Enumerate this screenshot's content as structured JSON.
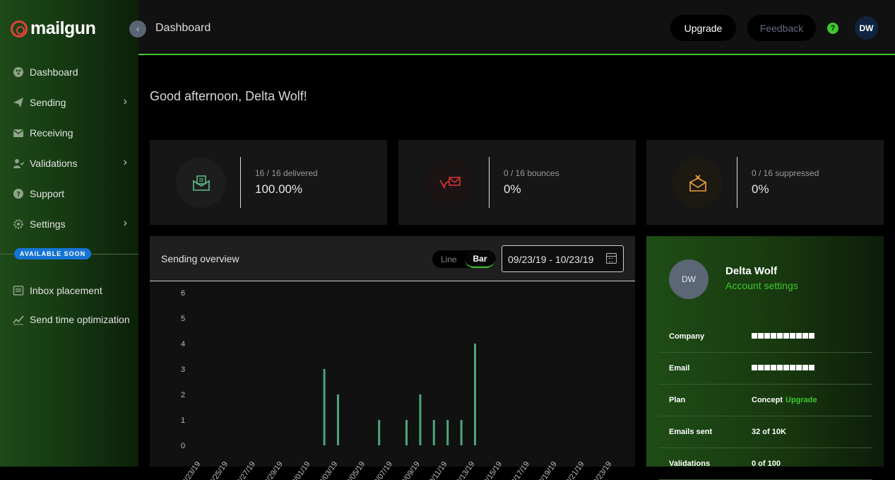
{
  "brand": {
    "name": "mailgun"
  },
  "sidebar": {
    "items": [
      {
        "label": "Dashboard",
        "icon": "dashboard-icon",
        "has_chevron": false
      },
      {
        "label": "Sending",
        "icon": "paper-plane-icon",
        "has_chevron": true
      },
      {
        "label": "Receiving",
        "icon": "inbox-icon",
        "has_chevron": false
      },
      {
        "label": "Validations",
        "icon": "user-check-icon",
        "has_chevron": true
      },
      {
        "label": "Support",
        "icon": "question-icon",
        "has_chevron": false
      },
      {
        "label": "Settings",
        "icon": "gear-icon",
        "has_chevron": true
      }
    ],
    "available_soon_label": "AVAILABLE SOON",
    "soon_items": [
      {
        "label": "Inbox placement",
        "icon": "inbox-placement-icon"
      },
      {
        "label": "Send time optimization",
        "icon": "trend-icon"
      }
    ]
  },
  "topbar": {
    "breadcrumb": "Dashboard",
    "upgrade_label": "Upgrade",
    "feedback_label": "Feedback",
    "help_label": "?",
    "avatar_initials": "DW"
  },
  "greeting": "Good afternoon, Delta Wolf!",
  "stats": [
    {
      "label": "16 / 16 delivered",
      "value": "100.00%",
      "icon": "envelope-delivered-icon",
      "color": "#5fbf8f"
    },
    {
      "label": "0 / 16 bounces",
      "value": "0%",
      "icon": "envelope-bounce-icon",
      "color": "#d9333a"
    },
    {
      "label": "0 / 16 suppressed",
      "value": "0%",
      "icon": "envelope-suppressed-icon",
      "color": "#f0a23a"
    }
  ],
  "overview": {
    "title": "Sending overview",
    "toggle_line": "Line",
    "toggle_bar": "Bar",
    "date_range": "09/23/19 - 10/23/19"
  },
  "chart_data": {
    "type": "bar",
    "ylim": [
      0,
      6
    ],
    "yticks": [
      "0",
      "1",
      "2",
      "3",
      "4",
      "5",
      "6"
    ],
    "x_tick_labels": [
      "09/23/19",
      "09/25/19",
      "09/27/19",
      "09/29/19",
      "10/01/19",
      "10/03/19",
      "10/05/19",
      "10/07/19",
      "10/09/19",
      "10/11/19",
      "10/13/19",
      "10/15/19",
      "10/17/19",
      "10/19/19",
      "10/21/19",
      "10/23/19"
    ],
    "categories": [
      "09/23/19",
      "09/24/19",
      "09/25/19",
      "09/26/19",
      "09/27/19",
      "09/28/19",
      "09/29/19",
      "09/30/19",
      "10/01/19",
      "10/02/19",
      "10/03/19",
      "10/04/19",
      "10/05/19",
      "10/06/19",
      "10/07/19",
      "10/08/19",
      "10/09/19",
      "10/10/19",
      "10/11/19",
      "10/12/19",
      "10/13/19",
      "10/14/19",
      "10/15/19",
      "10/16/19",
      "10/17/19",
      "10/18/19",
      "10/19/19",
      "10/20/19",
      "10/21/19",
      "10/22/19",
      "10/23/19"
    ],
    "values": [
      0,
      0,
      0,
      0,
      0,
      0,
      0,
      0,
      0,
      3,
      2,
      0,
      0,
      1,
      0,
      1,
      2,
      1,
      1,
      1,
      4,
      0,
      0,
      0,
      0,
      0,
      0,
      0,
      0,
      0,
      0
    ],
    "bar_color": "#4ea57a",
    "grid": false
  },
  "account": {
    "avatar_initials": "DW",
    "name": "Delta Wolf",
    "settings_label": "Account settings",
    "rows": [
      {
        "key": "Company",
        "value": ""
      },
      {
        "key": "Email",
        "value": ""
      },
      {
        "key": "Plan",
        "value": "Concept",
        "link": "Upgrade"
      },
      {
        "key": "Emails sent",
        "value": "32 of 10K"
      },
      {
        "key": "Validations",
        "value": "0 of 100"
      }
    ]
  }
}
